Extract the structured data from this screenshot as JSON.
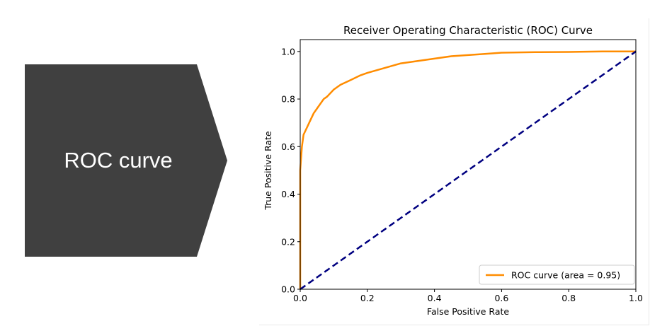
{
  "slide": {
    "callout_label": "ROC curve",
    "callout_color": "#404040"
  },
  "chart_data": {
    "type": "line",
    "title": "Receiver Operating Characteristic (ROC) Curve",
    "xlabel": "False Positive Rate",
    "ylabel": "True Positive Rate",
    "xlim": [
      0.0,
      1.0
    ],
    "ylim": [
      0.0,
      1.05
    ],
    "xticks": [
      "0.0",
      "0.2",
      "0.4",
      "0.6",
      "0.8",
      "1.0"
    ],
    "yticks": [
      "0.0",
      "0.2",
      "0.4",
      "0.6",
      "0.8",
      "1.0"
    ],
    "grid": false,
    "legend_position": "lower-right",
    "series": [
      {
        "name": "ROC curve (area = 0.95)",
        "color": "#ff8c00",
        "style": "solid",
        "x": [
          0.0,
          0.0,
          0.005,
          0.01,
          0.02,
          0.03,
          0.04,
          0.05,
          0.06,
          0.07,
          0.08,
          0.1,
          0.12,
          0.15,
          0.18,
          0.2,
          0.25,
          0.3,
          0.35,
          0.4,
          0.45,
          0.5,
          0.55,
          0.6,
          0.7,
          0.8,
          0.9,
          1.0
        ],
        "y": [
          0.0,
          0.5,
          0.6,
          0.65,
          0.68,
          0.71,
          0.74,
          0.76,
          0.78,
          0.8,
          0.81,
          0.84,
          0.86,
          0.88,
          0.9,
          0.91,
          0.93,
          0.95,
          0.96,
          0.97,
          0.98,
          0.985,
          0.99,
          0.995,
          0.997,
          0.998,
          1.0,
          1.0
        ]
      },
      {
        "name": "",
        "color": "#000080",
        "style": "dashed",
        "x": [
          0.0,
          1.0
        ],
        "y": [
          0.0,
          1.0
        ]
      }
    ]
  }
}
